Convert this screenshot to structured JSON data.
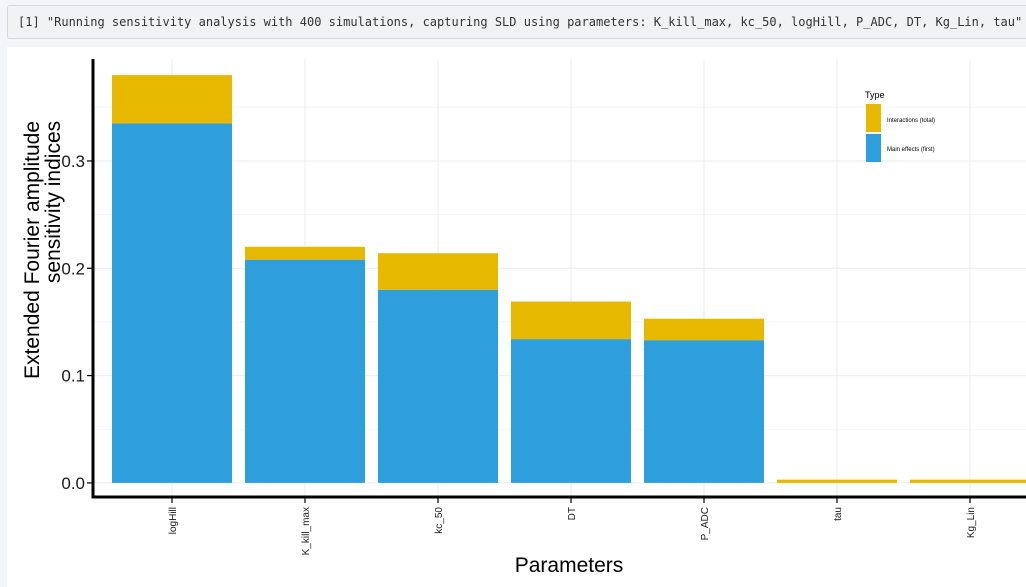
{
  "console": {
    "output_line": "[1] \"Running sensitivity analysis with 400 simulations, capturing SLD using parameters: K_kill_max, kc_50, logHill, P_ADC, DT, Kg_Lin, tau\""
  },
  "colors": {
    "main_effects": "#2e9fdc",
    "interactions": "#e6b900",
    "grid": "#ebebeb",
    "axis": "#000000"
  },
  "chart_data": {
    "type": "bar",
    "stacked": true,
    "categories": [
      "logHill",
      "K_kill_max",
      "kc_50",
      "DT",
      "P_ADC",
      "tau",
      "Kg_Lin"
    ],
    "series": [
      {
        "name": "Main effects (first)",
        "values": [
          0.335,
          0.208,
          0.18,
          0.134,
          0.133,
          0.0,
          0.0
        ]
      },
      {
        "name": "Interactions (total)",
        "values": [
          0.045,
          0.012,
          0.034,
          0.035,
          0.02,
          0.003,
          0.003
        ]
      }
    ],
    "xlabel": "Parameters",
    "ylabel_lines": [
      "Extended Fourier amplitude",
      "sensitivity indices"
    ],
    "ylim": [
      -0.015,
      0.395
    ],
    "yticks": [
      0.0,
      0.1,
      0.2,
      0.3
    ],
    "ytick_labels": [
      "0.0",
      "0.1",
      "0.2",
      "0.3"
    ],
    "legend": {
      "title": "Type",
      "position": "top-right",
      "entries": [
        "Interactions (total)",
        "Main effects (first)"
      ]
    },
    "grid": true
  }
}
